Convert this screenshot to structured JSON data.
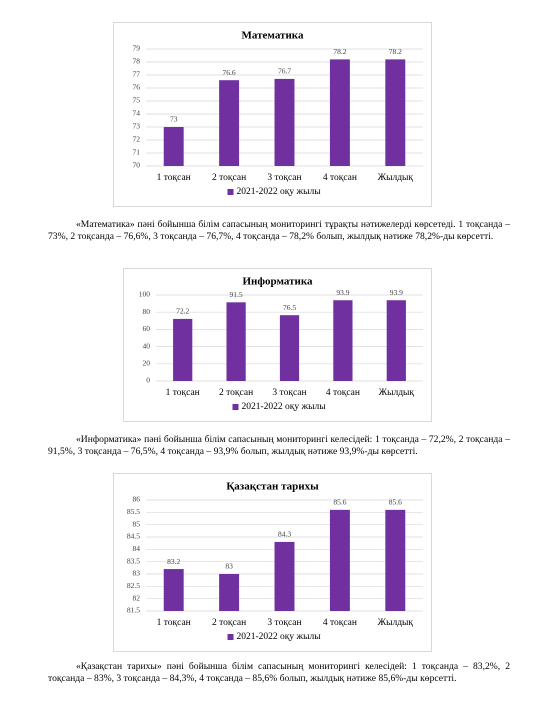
{
  "chart_data": [
    {
      "type": "bar",
      "title": "Математика",
      "categories": [
        "1 тоқсан",
        "2 тоқсан",
        "3 тоқсан",
        "4 тоқсан",
        "Жылдық"
      ],
      "series": [
        {
          "name": "2021-2022 оқу жылы",
          "color": "#7030a0",
          "values": [
            73,
            76.6,
            76.7,
            78.2,
            78.2
          ]
        }
      ],
      "ylim": [
        70,
        79
      ],
      "yticks": [
        70,
        71,
        72,
        73,
        74,
        75,
        76,
        77,
        78,
        79
      ],
      "grid": true,
      "legend": "bottom"
    },
    {
      "type": "bar",
      "title": "Информатика",
      "categories": [
        "1 тоқсан",
        "2 тоқсан",
        "3 тоқсан",
        "4 тоқсан",
        "Жылдық"
      ],
      "series": [
        {
          "name": "2021-2022 оқу жылы",
          "color": "#7030a0",
          "values": [
            72.2,
            91.5,
            76.5,
            93.9,
            93.9
          ]
        }
      ],
      "ylim": [
        0,
        100
      ],
      "yticks": [
        0,
        20,
        40,
        60,
        80,
        100
      ],
      "grid": true,
      "legend": "bottom"
    },
    {
      "type": "bar",
      "title": "Қазақстан тарихы",
      "categories": [
        "1 тоқсан",
        "2 тоқсан",
        "3 тоқсан",
        "4 тоқсан",
        "Жылдық"
      ],
      "series": [
        {
          "name": "2021-2022 оқу жылы",
          "color": "#7030a0",
          "values": [
            83.2,
            83,
            84.3,
            85.6,
            85.6
          ]
        }
      ],
      "ylim": [
        81.5,
        86
      ],
      "yticks": [
        81.5,
        82,
        82.5,
        83,
        83.5,
        84,
        84.5,
        85,
        85.5,
        86
      ],
      "grid": true,
      "legend": "bottom"
    }
  ],
  "paragraphs": [
    "«Математика» пәні бойынша білім сапасының мониторингі тұрақты нәтижелерді көрсетеді. 1 тоқсанда – 73%, 2 тоқсанда – 76,6%, 3 тоқсанда – 76,7%, 4 тоқсанда – 78,2% болып, жылдық нәтиже 78,2%-ды көрсетті.",
    "«Информатика» пәні бойынша білім сапасының мониторингі келесідей: 1 тоқсанда – 72,2%, 2 тоқсанда – 91,5%, 3 тоқсанда – 76,5%, 4 тоқсанда – 93,9% болып, жылдық нәтиже 93,9%-ды көрсетті.",
    "«Қазақстан тарихы» пәні бойынша білім сапасының мониторингі келесідей: 1 тоқсанда – 83,2%, 2 тоқсанда – 83%, 3 тоқсанда – 84,3%, 4 тоқсанда – 85,6% болып, жылдық нәтиже 85,6%-ды көрсетті."
  ]
}
